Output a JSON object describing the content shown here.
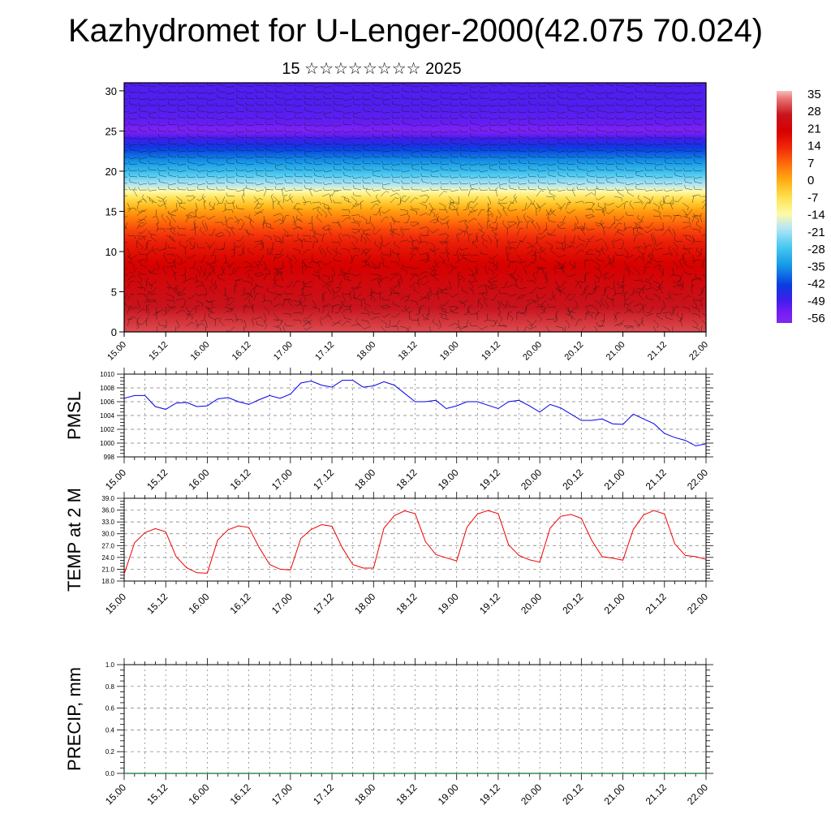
{
  "title": "Kazhydromet for U-Lenger-2000(42.075 70.024)",
  "subtitle": "15 ☆☆☆☆☆☆☆☆ 2025",
  "chart_data": [
    {
      "type": "heatmap",
      "name": "cross-section",
      "x_tick_labels": [
        "15.00",
        "15.12",
        "16.00",
        "16.12",
        "17.00",
        "17.12",
        "18.00",
        "18.12",
        "19.00",
        "19.12",
        "20.00",
        "20.12",
        "21.00",
        "21.12",
        "22.00"
      ],
      "y_tick_labels": [
        "0",
        "5",
        "10",
        "15",
        "20",
        "25",
        "30"
      ],
      "ylim": [
        0,
        31
      ],
      "colorbar_labels": [
        "35",
        "28",
        "21",
        "14",
        "7",
        "0",
        "-7",
        "-14",
        "-21",
        "-28",
        "-35",
        "-42",
        "-49",
        "-56"
      ],
      "colorbar_range": [
        -60,
        38
      ],
      "level_profile": {
        "heights": [
          0,
          3,
          6,
          9,
          11,
          13,
          15,
          16.5,
          18,
          20,
          22,
          24,
          25,
          26,
          28,
          31
        ],
        "values": [
          32,
          28,
          24,
          20,
          16,
          10,
          2,
          -6,
          -18,
          -30,
          -40,
          -50,
          -58,
          -54,
          -52,
          -52
        ]
      },
      "overlay": "wind barbs"
    },
    {
      "type": "line",
      "ylabel": "PMSL",
      "ylim": [
        998,
        1010
      ],
      "y_tick_labels": [
        "998",
        "1000",
        "1002",
        "1004",
        "1006",
        "1008",
        "1010"
      ],
      "x_tick_labels": [
        "15.00",
        "15.12",
        "16.00",
        "16.12",
        "17.00",
        "17.12",
        "18.00",
        "18.12",
        "19.00",
        "19.12",
        "20.00",
        "20.12",
        "21.00",
        "21.12",
        "22.00"
      ],
      "color": "#0000ee",
      "x": [
        0,
        3,
        6,
        9,
        12,
        15,
        18,
        21,
        24,
        27,
        30,
        33,
        36,
        39,
        42,
        45,
        48,
        51,
        54,
        57,
        60,
        63,
        66,
        69,
        72,
        75,
        78,
        81,
        84,
        87,
        90,
        93,
        96,
        99,
        102,
        105,
        108,
        111,
        114,
        117,
        120,
        123,
        126,
        129,
        132,
        135,
        138,
        141,
        144,
        147,
        150,
        153,
        156,
        159,
        162,
        165,
        168
      ],
      "values": [
        1006.5,
        1006.9,
        1006.9,
        1005.3,
        1004.9,
        1005.8,
        1005.9,
        1005.3,
        1005.4,
        1006.4,
        1006.6,
        1006.0,
        1005.6,
        1006.3,
        1006.9,
        1006.5,
        1007.1,
        1008.7,
        1009.0,
        1008.4,
        1008.1,
        1009.1,
        1009.1,
        1008.1,
        1008.3,
        1008.9,
        1008.4,
        1007.2,
        1006.0,
        1006.0,
        1006.2,
        1005.0,
        1005.4,
        1006.0,
        1006.0,
        1005.5,
        1005.0,
        1006.0,
        1006.2,
        1005.4,
        1004.5,
        1005.6,
        1005.1,
        1004.2,
        1003.3,
        1003.3,
        1003.5,
        1002.8,
        1002.7,
        1004.2,
        1003.5,
        1002.8,
        1001.4,
        1000.8,
        1000.4,
        999.6,
        999.9
      ]
    },
    {
      "type": "line",
      "ylabel": "TEMP at 2 M",
      "ylim": [
        18,
        39
      ],
      "y_tick_labels": [
        "18.0",
        "21.0",
        "24.0",
        "27.0",
        "30.0",
        "33.0",
        "36.0",
        "39.0"
      ],
      "x_tick_labels": [
        "15.00",
        "15.12",
        "16.00",
        "16.12",
        "17.00",
        "17.12",
        "18.00",
        "18.12",
        "19.00",
        "19.12",
        "20.00",
        "20.12",
        "21.00",
        "21.12",
        "22.00"
      ],
      "color": "#ee0000",
      "x": [
        0,
        3,
        6,
        9,
        12,
        15,
        18,
        21,
        24,
        27,
        30,
        33,
        36,
        39,
        42,
        45,
        48,
        51,
        54,
        57,
        60,
        63,
        66,
        69,
        72,
        75,
        78,
        81,
        84,
        87,
        90,
        93,
        96,
        99,
        102,
        105,
        108,
        111,
        114,
        117,
        120,
        123,
        126,
        129,
        132,
        135,
        138,
        141,
        144,
        147,
        150,
        153,
        156,
        159,
        162,
        165,
        168
      ],
      "values": [
        19.8,
        27.7,
        30.3,
        31.3,
        30.5,
        24.2,
        21.4,
        20.1,
        20.0,
        28.4,
        31.0,
        32.0,
        31.6,
        26.5,
        22.2,
        21.0,
        20.8,
        28.8,
        31.1,
        32.3,
        31.9,
        26.4,
        22.2,
        21.3,
        21.3,
        31.4,
        34.6,
        35.8,
        35.1,
        28.0,
        24.7,
        23.9,
        23.1,
        31.7,
        35.0,
        35.9,
        35.1,
        27.2,
        24.5,
        23.4,
        22.8,
        31.4,
        34.4,
        34.9,
        33.9,
        28.3,
        24.2,
        23.8,
        23.3,
        31.1,
        34.8,
        35.9,
        35.0,
        27.4,
        24.5,
        24.2,
        23.5
      ]
    },
    {
      "type": "line",
      "ylabel": "PRECIP, mm",
      "ylim": [
        0,
        1
      ],
      "y_tick_labels": [
        "0.0",
        "0.2",
        "0.4",
        "0.6",
        "0.8",
        "1.0"
      ],
      "x_tick_labels": [
        "15.00",
        "15.12",
        "16.00",
        "16.12",
        "17.00",
        "17.12",
        "18.00",
        "18.12",
        "19.00",
        "19.12",
        "20.00",
        "20.12",
        "21.00",
        "21.12",
        "22.00"
      ],
      "color": "#2e8b57",
      "x": [
        0,
        3,
        6,
        9,
        12,
        15,
        18,
        21,
        24,
        27,
        30,
        33,
        36,
        39,
        42,
        45,
        48,
        51,
        54,
        57,
        60,
        63,
        66,
        69,
        72,
        75,
        78,
        81,
        84,
        87,
        90,
        93,
        96,
        99,
        102,
        105,
        108,
        111,
        114,
        117,
        120,
        123,
        126,
        129,
        132,
        135,
        138,
        141,
        144,
        147,
        150,
        153,
        156,
        159,
        162,
        165,
        168
      ],
      "values": [
        0,
        0,
        0,
        0,
        0,
        0,
        0,
        0,
        0,
        0,
        0,
        0,
        0,
        0,
        0,
        0,
        0,
        0,
        0,
        0,
        0,
        0,
        0,
        0,
        0,
        0,
        0,
        0,
        0,
        0,
        0,
        0,
        0,
        0,
        0,
        0,
        0,
        0,
        0,
        0,
        0,
        0,
        0,
        0,
        0,
        0,
        0,
        0,
        0,
        0,
        0,
        0,
        0,
        0,
        0,
        0,
        0
      ]
    }
  ]
}
